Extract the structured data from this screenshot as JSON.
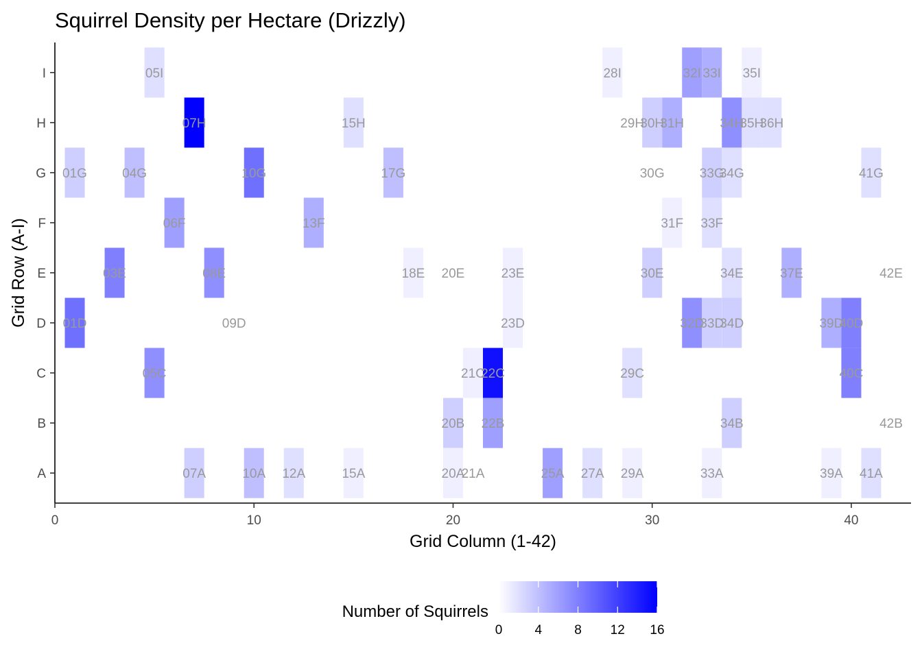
{
  "chart_data": {
    "type": "heatmap",
    "title": "Squirrel Density per Hectare (Drizzly)",
    "xlabel": "Grid Column (1-42)",
    "ylabel": "Grid Row (A-I)",
    "xlim": [
      0,
      43
    ],
    "x_ticks": [
      0,
      10,
      20,
      30,
      40
    ],
    "rows": [
      "A",
      "B",
      "C",
      "D",
      "E",
      "F",
      "G",
      "H",
      "I"
    ],
    "grid": false,
    "legend": {
      "title": "Number of Squirrels",
      "position": "bottom",
      "min": 0,
      "max": 16,
      "ticks": [
        0,
        4,
        8,
        12,
        16
      ],
      "low_color": "#ffffff",
      "high_color": "#0000ff"
    },
    "cells": [
      {
        "x": 5,
        "y": "I",
        "label": "05I",
        "value": 2
      },
      {
        "x": 28,
        "y": "I",
        "label": "28I",
        "value": 1
      },
      {
        "x": 32,
        "y": "I",
        "label": "32I",
        "value": 6
      },
      {
        "x": 33,
        "y": "I",
        "label": "33I",
        "value": 5
      },
      {
        "x": 35,
        "y": "I",
        "label": "35I",
        "value": 1
      },
      {
        "x": 7,
        "y": "H",
        "label": "07H",
        "value": 16
      },
      {
        "x": 15,
        "y": "H",
        "label": "15H",
        "value": 2
      },
      {
        "x": 29,
        "y": "H",
        "label": "29H",
        "value": 0
      },
      {
        "x": 30,
        "y": "H",
        "label": "30H",
        "value": 3
      },
      {
        "x": 31,
        "y": "H",
        "label": "31H",
        "value": 5
      },
      {
        "x": 34,
        "y": "H",
        "label": "34H",
        "value": 7
      },
      {
        "x": 35,
        "y": "H",
        "label": "35H",
        "value": 2
      },
      {
        "x": 36,
        "y": "H",
        "label": "36H",
        "value": 2
      },
      {
        "x": 1,
        "y": "G",
        "label": "01G",
        "value": 3
      },
      {
        "x": 4,
        "y": "G",
        "label": "04G",
        "value": 4
      },
      {
        "x": 10,
        "y": "G",
        "label": "10G",
        "value": 9
      },
      {
        "x": 17,
        "y": "G",
        "label": "17G",
        "value": 4
      },
      {
        "x": 30,
        "y": "G",
        "label": "30G",
        "value": 0
      },
      {
        "x": 33,
        "y": "G",
        "label": "33G",
        "value": 3
      },
      {
        "x": 34,
        "y": "G",
        "label": "34G",
        "value": 2
      },
      {
        "x": 41,
        "y": "G",
        "label": "41G",
        "value": 2
      },
      {
        "x": 6,
        "y": "F",
        "label": "06F",
        "value": 6
      },
      {
        "x": 13,
        "y": "F",
        "label": "13F",
        "value": 5
      },
      {
        "x": 31,
        "y": "F",
        "label": "31F",
        "value": 1
      },
      {
        "x": 33,
        "y": "F",
        "label": "33F",
        "value": 2
      },
      {
        "x": 3,
        "y": "E",
        "label": "03E",
        "value": 8
      },
      {
        "x": 8,
        "y": "E",
        "label": "08E",
        "value": 7
      },
      {
        "x": 18,
        "y": "E",
        "label": "18E",
        "value": 1
      },
      {
        "x": 20,
        "y": "E",
        "label": "20E",
        "value": 0
      },
      {
        "x": 23,
        "y": "E",
        "label": "23E",
        "value": 1
      },
      {
        "x": 30,
        "y": "E",
        "label": "30E",
        "value": 3
      },
      {
        "x": 34,
        "y": "E",
        "label": "34E",
        "value": 2
      },
      {
        "x": 37,
        "y": "E",
        "label": "37E",
        "value": 5
      },
      {
        "x": 42,
        "y": "E",
        "label": "42E",
        "value": 0
      },
      {
        "x": 1,
        "y": "D",
        "label": "01D",
        "value": 9
      },
      {
        "x": 9,
        "y": "D",
        "label": "09D",
        "value": 0
      },
      {
        "x": 23,
        "y": "D",
        "label": "23D",
        "value": 1
      },
      {
        "x": 32,
        "y": "D",
        "label": "32D",
        "value": 7
      },
      {
        "x": 33,
        "y": "D",
        "label": "33D",
        "value": 3
      },
      {
        "x": 34,
        "y": "D",
        "label": "34D",
        "value": 3
      },
      {
        "x": 39,
        "y": "D",
        "label": "39D",
        "value": 5
      },
      {
        "x": 40,
        "y": "D",
        "label": "40D",
        "value": 8
      },
      {
        "x": 5,
        "y": "C",
        "label": "05C",
        "value": 7
      },
      {
        "x": 21,
        "y": "C",
        "label": "21C",
        "value": 1
      },
      {
        "x": 22,
        "y": "C",
        "label": "22C",
        "value": 15
      },
      {
        "x": 29,
        "y": "C",
        "label": "29C",
        "value": 2
      },
      {
        "x": 40,
        "y": "C",
        "label": "40C",
        "value": 8
      },
      {
        "x": 20,
        "y": "B",
        "label": "20B",
        "value": 3
      },
      {
        "x": 22,
        "y": "B",
        "label": "22B",
        "value": 6
      },
      {
        "x": 34,
        "y": "B",
        "label": "34B",
        "value": 3
      },
      {
        "x": 42,
        "y": "B",
        "label": "42B",
        "value": 0
      },
      {
        "x": 7,
        "y": "A",
        "label": "07A",
        "value": 3
      },
      {
        "x": 10,
        "y": "A",
        "label": "10A",
        "value": 4
      },
      {
        "x": 12,
        "y": "A",
        "label": "12A",
        "value": 2
      },
      {
        "x": 15,
        "y": "A",
        "label": "15A",
        "value": 1
      },
      {
        "x": 20,
        "y": "A",
        "label": "20A",
        "value": 1
      },
      {
        "x": 21,
        "y": "A",
        "label": "21A",
        "value": 0
      },
      {
        "x": 25,
        "y": "A",
        "label": "25A",
        "value": 6
      },
      {
        "x": 27,
        "y": "A",
        "label": "27A",
        "value": 2
      },
      {
        "x": 29,
        "y": "A",
        "label": "29A",
        "value": 1
      },
      {
        "x": 33,
        "y": "A",
        "label": "33A",
        "value": 1
      },
      {
        "x": 39,
        "y": "A",
        "label": "39A",
        "value": 1
      },
      {
        "x": 41,
        "y": "A",
        "label": "41A",
        "value": 2
      }
    ]
  }
}
